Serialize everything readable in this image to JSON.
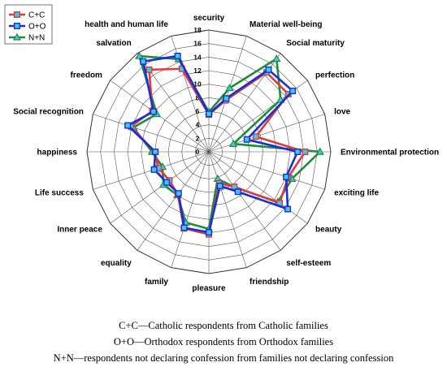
{
  "chart_data": {
    "type": "radar",
    "axes": [
      "security",
      "Material well-being",
      "Social maturity",
      "perfection",
      "love",
      "Environmental protection",
      "exciting life",
      "beauty",
      "self-esteem",
      "friendship",
      "pleasure",
      "family",
      "equality",
      "Inner peace",
      "Life success",
      "happiness",
      "Social recognition",
      "freedom",
      "salvation",
      "health and human life"
    ],
    "rlim": [
      0,
      18
    ],
    "ticks": [
      "0",
      "2",
      "4",
      "6",
      "8",
      "10",
      "12",
      "14",
      "16",
      "18"
    ],
    "grid": true,
    "legend_position": "top-left",
    "series": [
      {
        "name": "C+C",
        "color": "#e03a3a",
        "marker": "square",
        "values": [
          5.5,
          8,
          14.5,
          14.5,
          7.3,
          14.2,
          12.3,
          12.9,
          6.4,
          4.9,
          12.2,
          11.9,
          7.8,
          7.2,
          7.8,
          8,
          12.1,
          10.3,
          15,
          12.9
        ]
      },
      {
        "name": "O+O",
        "color": "#1a2ed8",
        "marker": "square",
        "values": [
          5.6,
          8.3,
          15,
          15.3,
          5.9,
          13.1,
          12,
          14.4,
          7.3,
          5.3,
          11.9,
          11.8,
          7.6,
          7.7,
          8.5,
          7.9,
          12.6,
          10.1,
          16.5,
          14.9
        ]
      },
      {
        "name": "N+N",
        "color": "#1f8c3a",
        "marker": "triangle",
        "values": [
          5.9,
          9.9,
          17,
          13.1,
          3.8,
          16.4,
          12.9,
          12.6,
          6.5,
          4.2,
          11.4,
          11,
          7.9,
          8.3,
          7.2,
          8.4,
          11.7,
          9.5,
          17.5,
          14.4
        ]
      }
    ]
  },
  "captions": [
    "C+C—Catholic respondents from Catholic families",
    "O+O—Orthodox respondents from Orthodox families",
    "N+N—respondents not declaring confession from families not declaring confession"
  ]
}
